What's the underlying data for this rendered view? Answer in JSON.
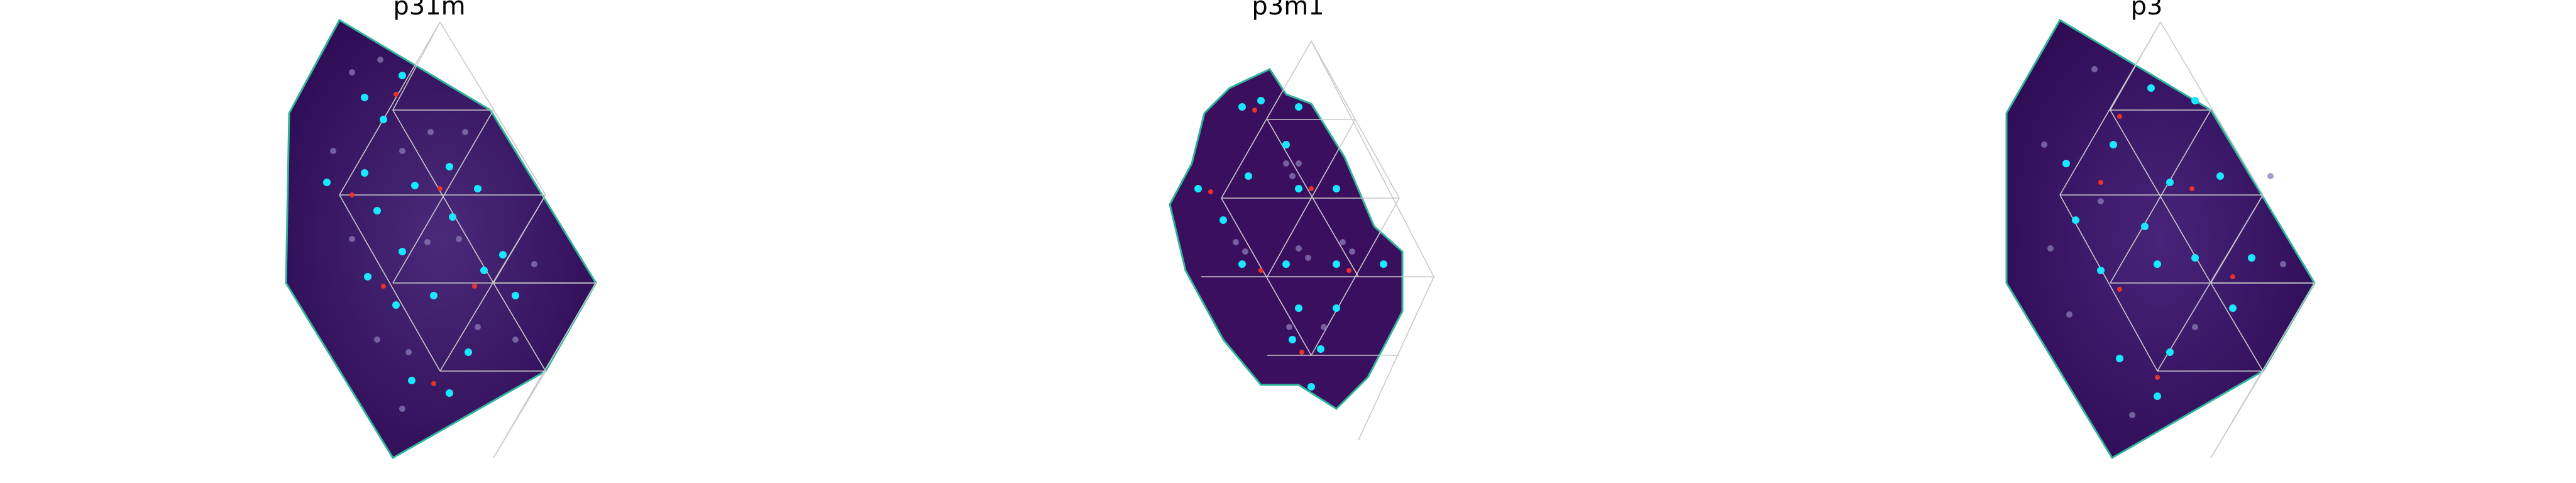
{
  "figure": {
    "panels": [
      {
        "title": "p31m"
      },
      {
        "title": "p3m1"
      },
      {
        "title": "p3"
      }
    ]
  },
  "colors": {
    "background_dark": "#3a0f5e",
    "background_mid": "#46206f",
    "highlight_teal": "#2fb59a",
    "dot_cyan": "#19e8ff",
    "dot_red": "#e8322a",
    "dot_faint": "#8b7bb5",
    "lattice_line": "#c9c9c9"
  }
}
